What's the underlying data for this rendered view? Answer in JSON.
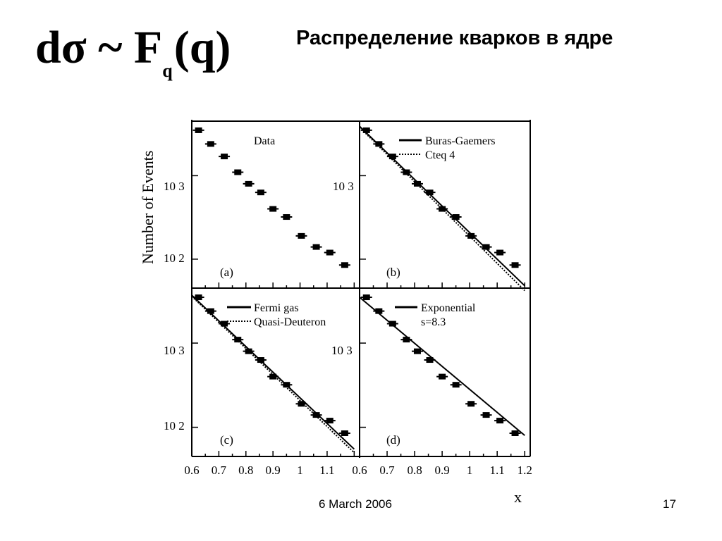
{
  "slide": {
    "formula": {
      "main": "dσ ~ F",
      "subscript": "q",
      "arg": "(q)"
    },
    "title": "Распределение кварков в ядре",
    "footer_date": "6 March 2006",
    "slide_number": "17"
  },
  "chart_data": {
    "type": "scatter",
    "ylabel": "Number of Events",
    "xlabel": "x",
    "yscale": "log",
    "y_tick_labels": [
      "10 3",
      "10 2"
    ],
    "y_tick_values": [
      1000,
      100
    ],
    "x_tick_labels_left": [
      "0.6",
      "0.7",
      "0.8",
      "0.9",
      "1",
      "1.1"
    ],
    "x_tick_labels_right": [
      "0.6",
      "0.7",
      "0.8",
      "0.9",
      "1",
      "1.1",
      "1.2"
    ],
    "xlim": [
      0.6,
      1.22
    ],
    "ylim": [
      45,
      4500
    ],
    "data_points": {
      "x": [
        0.625,
        0.67,
        0.72,
        0.77,
        0.81,
        0.855,
        0.9,
        0.95,
        1.005,
        1.06,
        1.11,
        1.165
      ],
      "y": [
        3500,
        2400,
        1700,
        1100,
        800,
        630,
        400,
        320,
        190,
        140,
        120,
        85
      ]
    },
    "panels": [
      {
        "label": "(a)",
        "title": "Data",
        "legend": []
      },
      {
        "label": "(b)",
        "legend": [
          {
            "name": "Buras-Gaemers",
            "style": "solid",
            "x": [
              0.6,
              1.2
            ],
            "y": [
              3900,
              48
            ]
          },
          {
            "name": "Cteq 4",
            "style": "dotted",
            "x": [
              0.6,
              1.2
            ],
            "y": [
              3800,
              42
            ]
          }
        ]
      },
      {
        "label": "(c)",
        "legend": [
          {
            "name": "Fermi gas",
            "style": "solid",
            "x": [
              0.6,
              1.2
            ],
            "y": [
              3700,
              55
            ]
          },
          {
            "name": "Quasi-Deuteron",
            "style": "dotted",
            "x": [
              0.6,
              1.2
            ],
            "y": [
              3600,
              50
            ]
          }
        ]
      },
      {
        "label": "(d)",
        "legend": [
          {
            "name": "Exponential",
            "style": "solid",
            "x": [
              0.6,
              1.2
            ],
            "y": [
              3500,
              80
            ]
          }
        ],
        "note": "s=8.3"
      }
    ]
  }
}
